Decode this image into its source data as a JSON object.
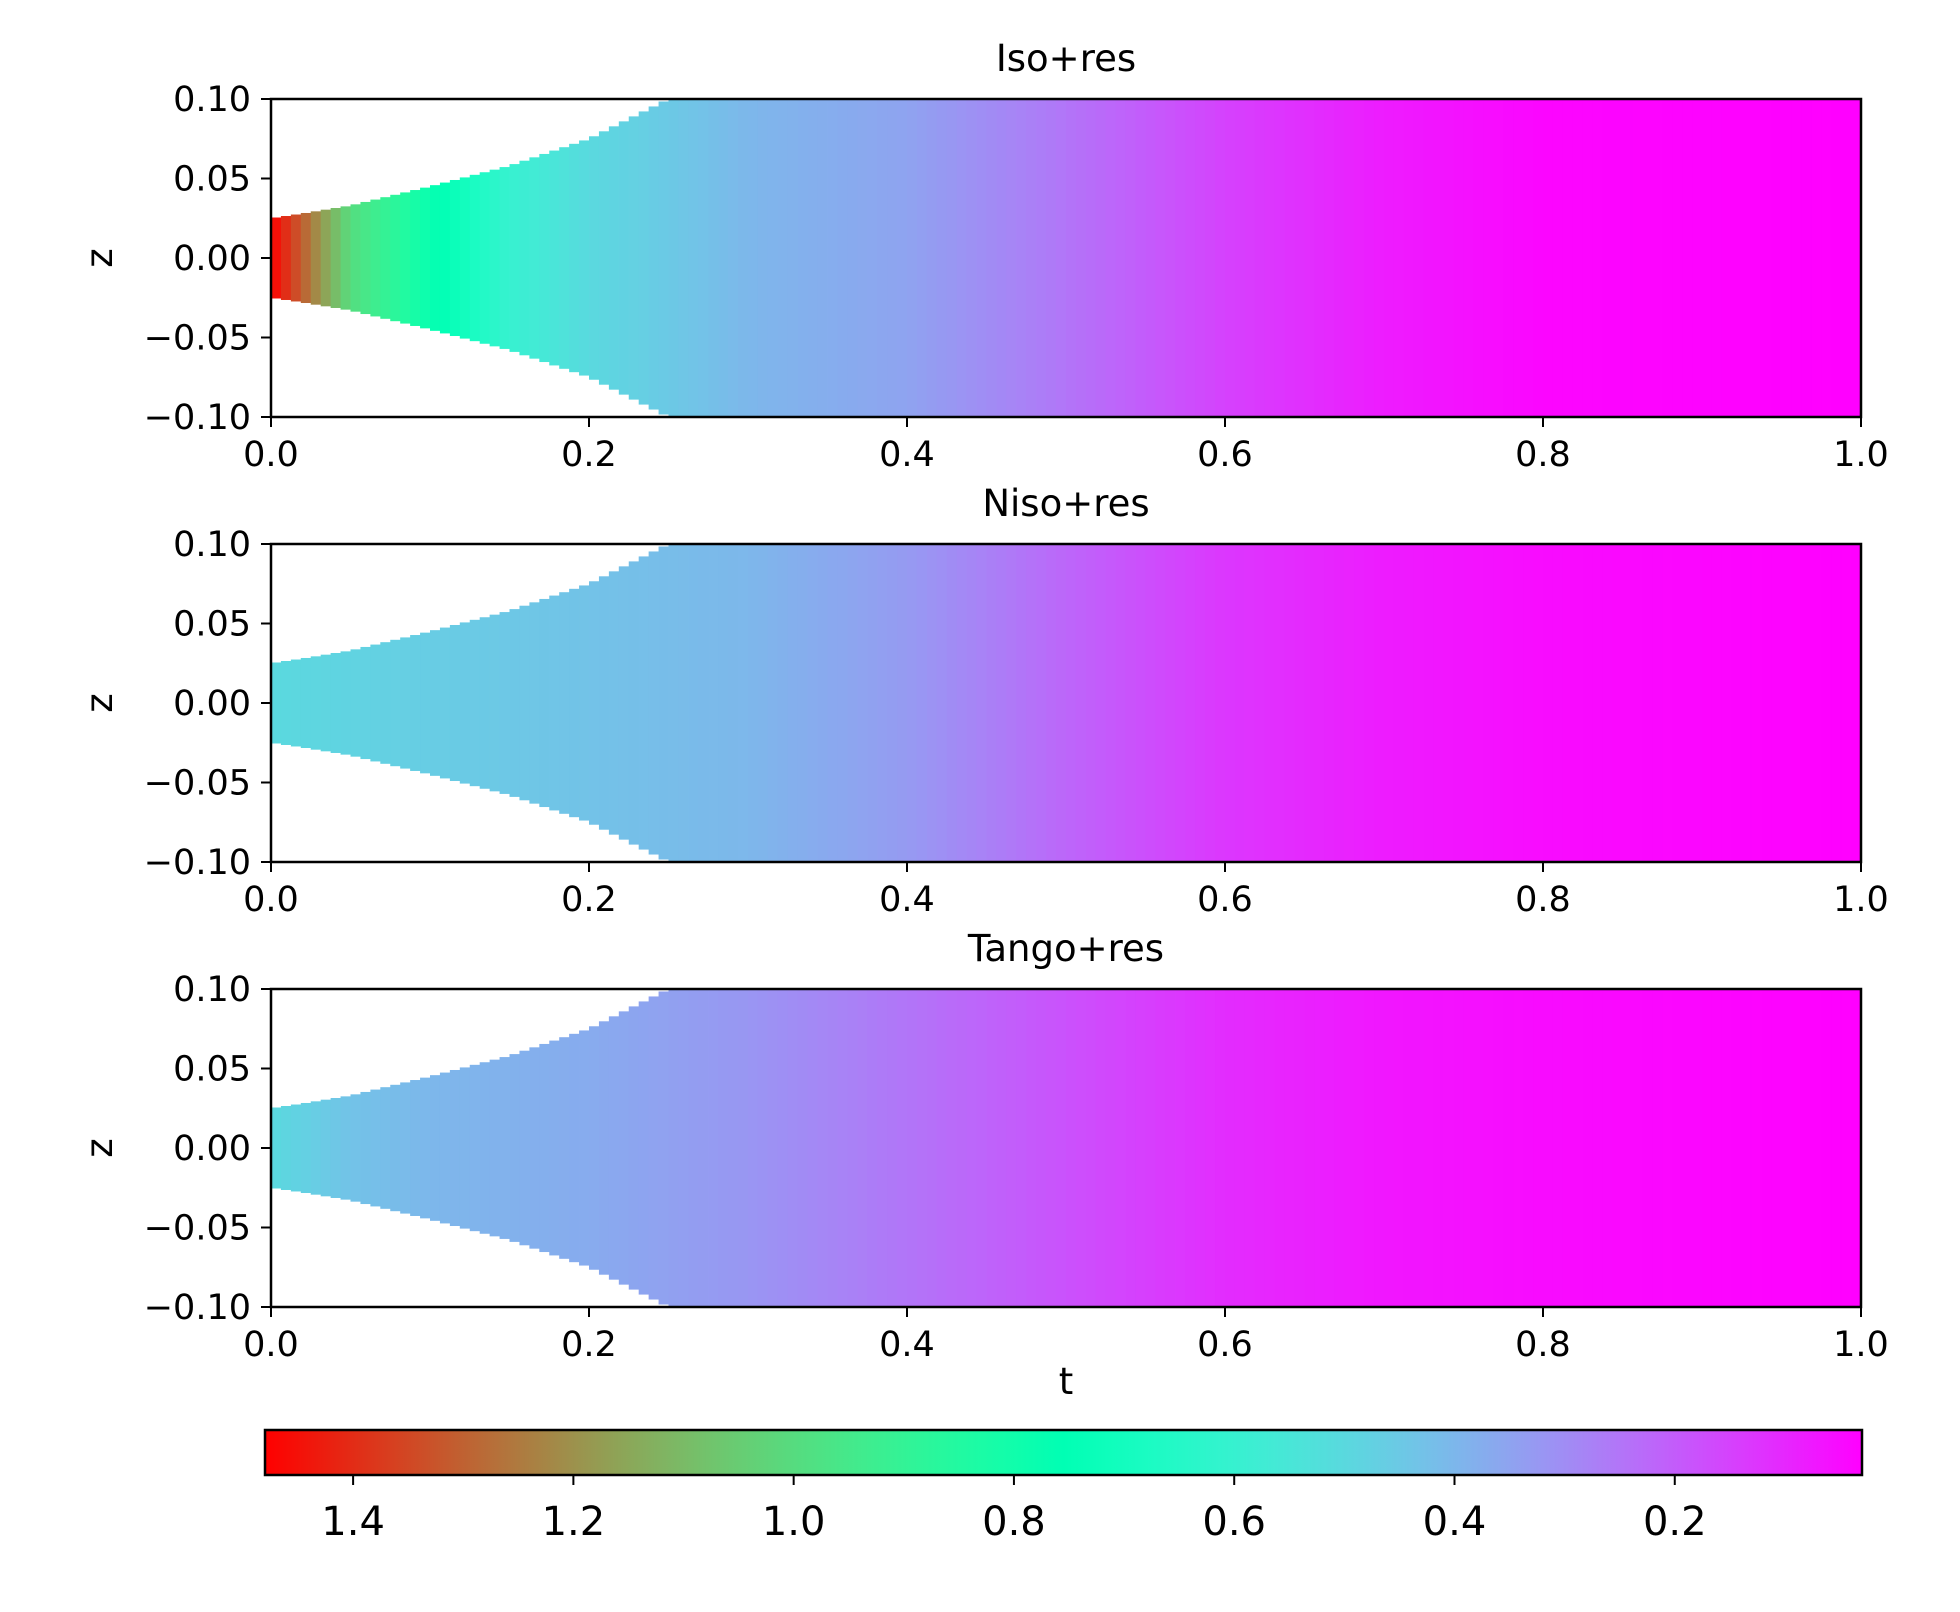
{
  "chart_data": [
    {
      "type": "heatmap",
      "title": "Iso+res",
      "xlabel": "",
      "ylabel": "z",
      "xlim": [
        0.0,
        1.0
      ],
      "ylim": [
        -0.1,
        0.1
      ],
      "xticks": [
        "0.0",
        "0.2",
        "0.4",
        "0.6",
        "0.8",
        "1.0"
      ],
      "yticks": [
        "−0.10",
        "−0.05",
        "0.00",
        "0.05",
        "0.10"
      ],
      "colored_half_width": {
        "t": [
          0.0,
          0.02,
          0.05,
          0.1,
          0.15,
          0.2,
          0.22,
          0.25,
          1.0
        ],
        "z": [
          0.025,
          0.028,
          0.033,
          0.045,
          0.058,
          0.075,
          0.085,
          0.1,
          0.1
        ]
      },
      "value_profile": {
        "t": [
          0.0,
          0.02,
          0.05,
          0.1,
          0.15,
          0.2,
          0.3,
          0.4,
          0.5,
          0.6,
          0.7,
          0.8,
          1.0
        ],
        "value": [
          1.48,
          1.3,
          1.0,
          0.78,
          0.6,
          0.5,
          0.4,
          0.35,
          0.25,
          0.15,
          0.08,
          0.04,
          0.03
        ]
      }
    },
    {
      "type": "heatmap",
      "title": "Niso+res",
      "xlabel": "",
      "ylabel": "z",
      "xlim": [
        0.0,
        1.0
      ],
      "ylim": [
        -0.1,
        0.1
      ],
      "xticks": [
        "0.0",
        "0.2",
        "0.4",
        "0.6",
        "0.8",
        "1.0"
      ],
      "yticks": [
        "−0.10",
        "−0.05",
        "0.00",
        "0.05",
        "0.10"
      ],
      "colored_half_width": {
        "t": [
          0.0,
          0.02,
          0.05,
          0.1,
          0.15,
          0.2,
          0.22,
          0.25,
          1.0
        ],
        "z": [
          0.025,
          0.028,
          0.033,
          0.045,
          0.058,
          0.075,
          0.085,
          0.1,
          0.1
        ]
      },
      "value_profile": {
        "t": [
          0.0,
          0.1,
          0.2,
          0.3,
          0.4,
          0.5,
          0.6,
          0.7,
          0.8,
          1.0
        ],
        "value": [
          0.5,
          0.46,
          0.43,
          0.4,
          0.33,
          0.22,
          0.13,
          0.08,
          0.05,
          0.03
        ]
      }
    },
    {
      "type": "heatmap",
      "title": "Tango+res",
      "xlabel": "t",
      "ylabel": "z",
      "xlim": [
        0.0,
        1.0
      ],
      "ylim": [
        -0.1,
        0.1
      ],
      "xticks": [
        "0.0",
        "0.2",
        "0.4",
        "0.6",
        "0.8",
        "1.0"
      ],
      "yticks": [
        "−0.10",
        "−0.05",
        "0.00",
        "0.05",
        "0.10"
      ],
      "colored_half_width": {
        "t": [
          0.0,
          0.02,
          0.05,
          0.1,
          0.15,
          0.2,
          0.22,
          0.25,
          1.0
        ],
        "z": [
          0.025,
          0.028,
          0.033,
          0.045,
          0.058,
          0.075,
          0.085,
          0.1,
          0.1
        ]
      },
      "value_profile": {
        "t": [
          0.0,
          0.05,
          0.1,
          0.2,
          0.3,
          0.4,
          0.5,
          0.6,
          0.7,
          0.8,
          1.0
        ],
        "value": [
          0.5,
          0.43,
          0.4,
          0.37,
          0.32,
          0.25,
          0.18,
          0.11,
          0.07,
          0.05,
          0.03
        ]
      }
    }
  ],
  "colorbar": {
    "colormap": "rainbow",
    "vmin": 0.03,
    "vmax": 1.48,
    "reversed": true,
    "ticks": [
      {
        "value": 1.4,
        "label": "1.4"
      },
      {
        "value": 1.2,
        "label": "1.2"
      },
      {
        "value": 1.0,
        "label": "1.0"
      },
      {
        "value": 0.8,
        "label": "0.8"
      },
      {
        "value": 0.6,
        "label": "0.6"
      },
      {
        "value": 0.4,
        "label": "0.4"
      },
      {
        "value": 0.2,
        "label": "0.2"
      }
    ]
  }
}
